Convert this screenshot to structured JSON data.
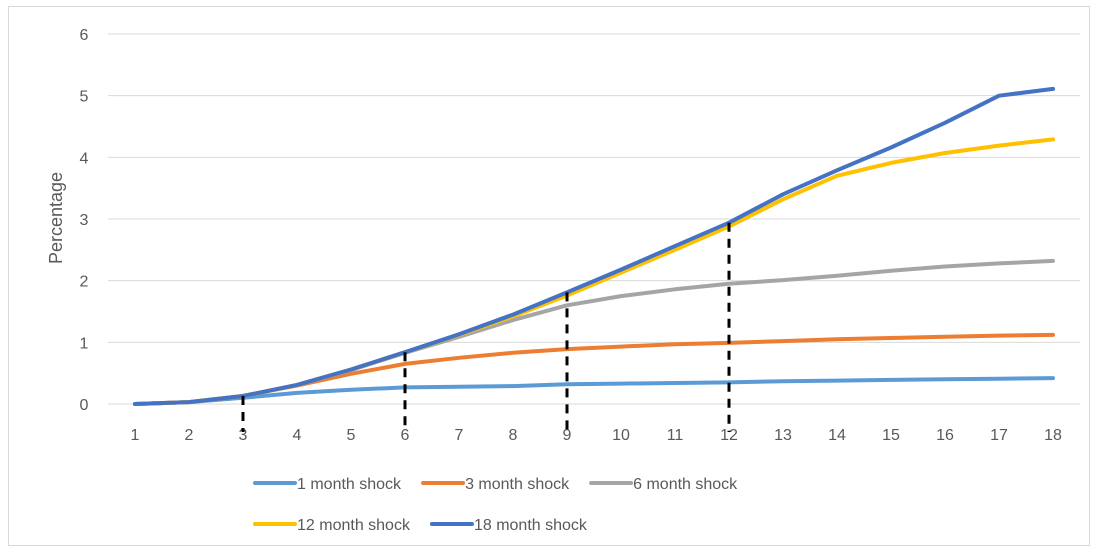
{
  "chart_data": {
    "type": "line",
    "title": "",
    "xlabel": "",
    "ylabel": "Percentage",
    "x": [
      1,
      2,
      3,
      4,
      5,
      6,
      7,
      8,
      9,
      10,
      11,
      12,
      13,
      14,
      15,
      16,
      17,
      18
    ],
    "ylim": [
      0,
      6
    ],
    "yticks": [
      0,
      1,
      2,
      3,
      4,
      5,
      6
    ],
    "grid": true,
    "legend_placement": "bottom",
    "vertical_markers": [
      3,
      6,
      9,
      12
    ],
    "series": [
      {
        "name": "1 month shock",
        "color": "#5B9BD5",
        "values": [
          0,
          0.03,
          0.1,
          0.18,
          0.23,
          0.27,
          0.28,
          0.29,
          0.32,
          0.33,
          0.34,
          0.35,
          0.37,
          0.38,
          0.39,
          0.4,
          0.41,
          0.42
        ]
      },
      {
        "name": "3 month shock",
        "color": "#ED7D31",
        "values": [
          0,
          0.03,
          0.13,
          0.3,
          0.49,
          0.65,
          0.75,
          0.83,
          0.89,
          0.93,
          0.97,
          0.99,
          1.02,
          1.05,
          1.07,
          1.09,
          1.11,
          1.12
        ]
      },
      {
        "name": "6 month shock",
        "color": "#A5A5A5",
        "values": [
          0,
          0.03,
          0.13,
          0.31,
          0.55,
          0.83,
          1.09,
          1.36,
          1.6,
          1.75,
          1.86,
          1.95,
          2.01,
          2.08,
          2.16,
          2.23,
          2.28,
          2.32
        ]
      },
      {
        "name": "12 month shock",
        "color": "#FFC000",
        "values": [
          0,
          0.03,
          0.13,
          0.31,
          0.56,
          0.84,
          1.12,
          1.42,
          1.76,
          2.13,
          2.5,
          2.88,
          3.32,
          3.7,
          3.91,
          4.07,
          4.19,
          4.29
        ]
      },
      {
        "name": "18 month shock",
        "color": "#4472C4",
        "values": [
          0,
          0.03,
          0.13,
          0.31,
          0.56,
          0.84,
          1.13,
          1.45,
          1.81,
          2.18,
          2.56,
          2.94,
          3.4,
          3.79,
          4.16,
          4.56,
          5.0,
          5.11
        ]
      }
    ]
  }
}
